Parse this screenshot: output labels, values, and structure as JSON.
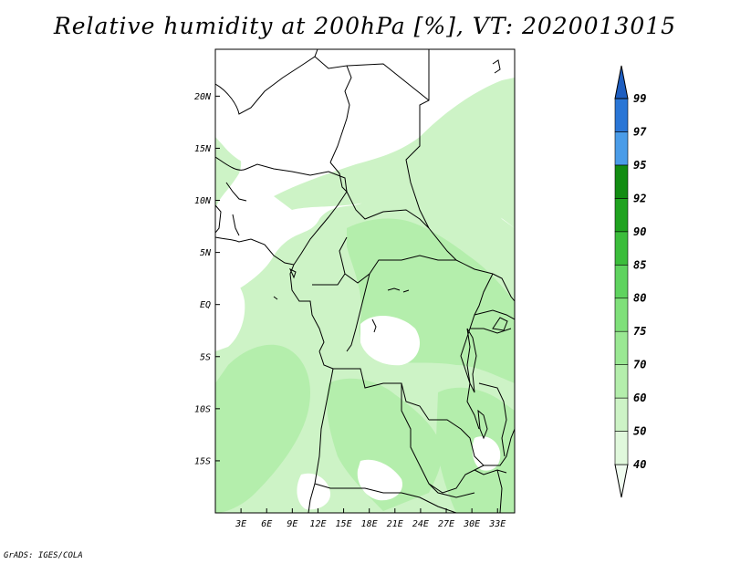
{
  "title": "Relative humidity at 200hPa [%], VT: 2020013015",
  "credit": "GrADS: IGES/COLA",
  "map": {
    "lon_range": [
      0,
      35
    ],
    "lat_range": [
      -20,
      24.5
    ],
    "x_ticks": [
      "3E",
      "6E",
      "9E",
      "12E",
      "15E",
      "18E",
      "21E",
      "24E",
      "27E",
      "30E",
      "33E"
    ],
    "x_tick_values": [
      3,
      6,
      9,
      12,
      15,
      18,
      21,
      24,
      27,
      30,
      33
    ],
    "y_ticks": [
      "20N",
      "15N",
      "10N",
      "5N",
      "EQ",
      "5S",
      "10S",
      "15S"
    ],
    "y_tick_values": [
      20,
      15,
      10,
      5,
      0,
      -5,
      -10,
      -15
    ]
  },
  "colorbar": {
    "levels": [
      "40",
      "50",
      "60",
      "70",
      "75",
      "80",
      "85",
      "90",
      "92",
      "95",
      "97",
      "99"
    ],
    "colors": [
      "#f0fcf0",
      "#e0f8dc",
      "#cdf3c6",
      "#b4eeac",
      "#9ae893",
      "#7fe07a",
      "#5fd35f",
      "#3bbd3b",
      "#1fa21f",
      "#128c12",
      "#4a9ce8",
      "#2a76d6",
      "#1e5ec0"
    ]
  },
  "legend_position": "right"
}
